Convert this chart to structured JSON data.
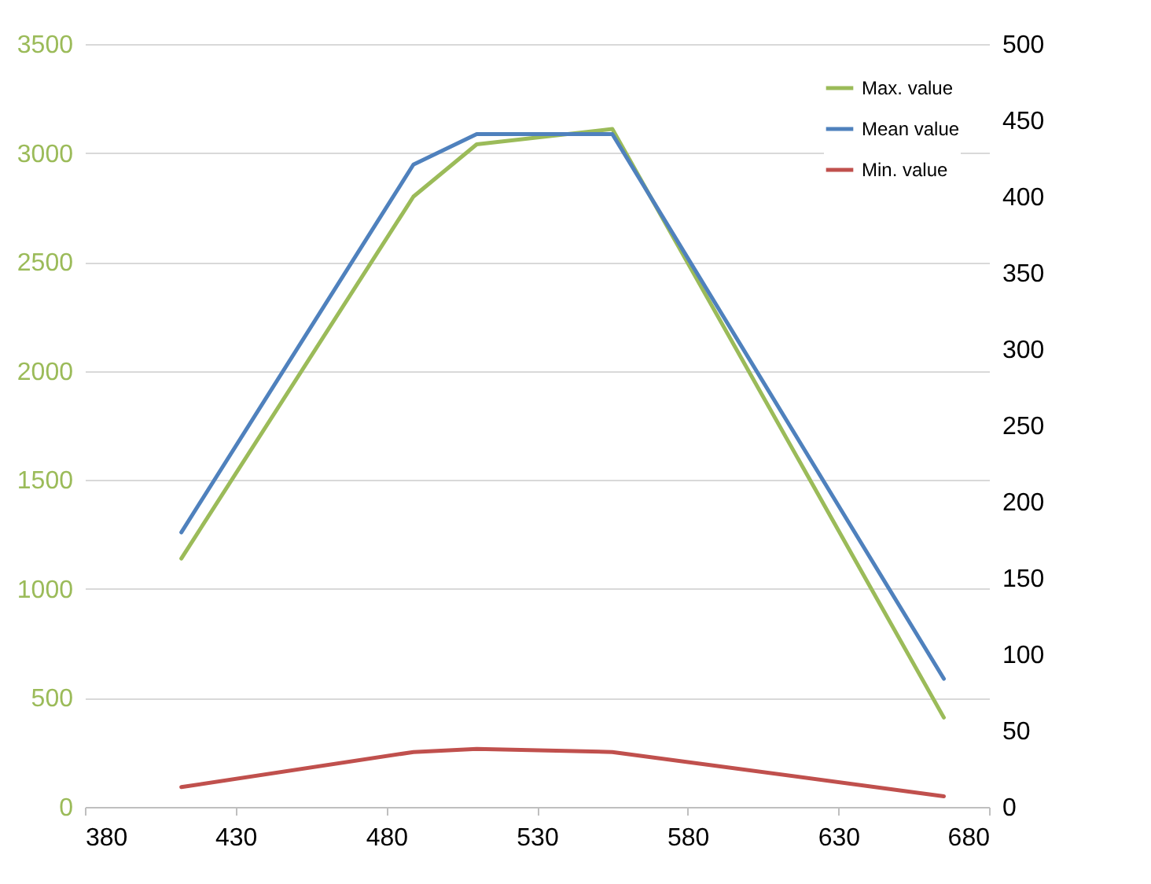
{
  "chart_data": {
    "type": "line",
    "x": [
      412,
      489,
      510,
      555,
      665
    ],
    "xlim": [
      380,
      680
    ],
    "xticks": [
      380,
      430,
      480,
      530,
      580,
      630,
      680
    ],
    "ylim": [
      0,
      3500
    ],
    "yticks": [
      0,
      500,
      1000,
      1500,
      2000,
      2500,
      3000,
      3500
    ],
    "y2lim": [
      0,
      500
    ],
    "y2ticks": [
      0,
      50,
      100,
      150,
      200,
      250,
      300,
      350,
      400,
      450,
      500
    ],
    "series": [
      {
        "name": "Max. value",
        "color": "#9bbb59",
        "values": [
          1140,
          2800,
          3040,
          3110,
          410
        ]
      },
      {
        "name": "Mean value",
        "color": "#4f81bd",
        "axis": "y2",
        "values": [
          180,
          421,
          441,
          441,
          84
        ]
      },
      {
        "name": "Min. value",
        "color": "#c0504d",
        "axis": "y2",
        "values": [
          13,
          36,
          38,
          36,
          7
        ]
      }
    ],
    "grid": "y",
    "legend": "top right",
    "marker": "none",
    "line_style": "solid"
  }
}
